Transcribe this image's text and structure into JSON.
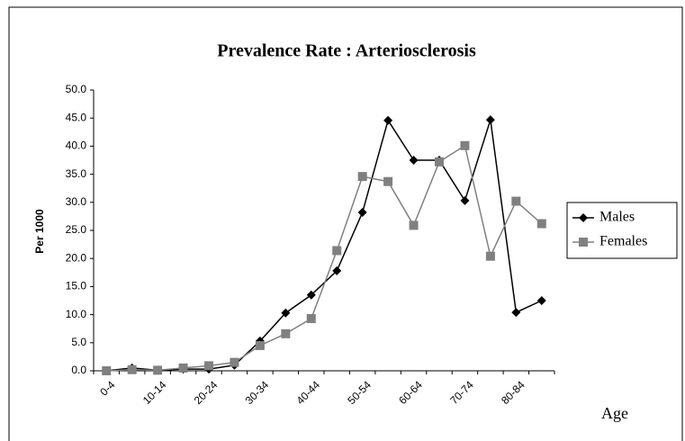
{
  "chart_data": {
    "type": "line",
    "title": "Prevalence Rate : Arteriosclerosis",
    "y_label": "Per 1000",
    "x_label": "Age",
    "categories": [
      "0-4",
      null,
      "10-14",
      null,
      "20-24",
      null,
      "30-34",
      null,
      "40-44",
      null,
      "50-54",
      null,
      "60-64",
      null,
      "70-74",
      null,
      "80-84",
      null
    ],
    "series": [
      {
        "name": "Males",
        "color": "#000000",
        "marker": "diamond",
        "values": [
          0,
          0.5,
          0.1,
          0.3,
          0.3,
          1.0,
          5.3,
          10.3,
          13.5,
          17.8,
          28.2,
          44.6,
          37.5,
          37.5,
          30.3,
          44.7,
          10.4,
          12.5
        ]
      },
      {
        "name": "Females",
        "color": "#808080",
        "marker": "square",
        "values": [
          0,
          0.2,
          0.1,
          0.5,
          0.9,
          1.5,
          4.5,
          6.6,
          9.3,
          21.4,
          34.6,
          33.7,
          25.9,
          37.2,
          40.1,
          20.4,
          30.2,
          26.2
        ]
      }
    ],
    "ylim": [
      0,
      50
    ],
    "yticks": [
      {
        "value": 0,
        "label": "0.0"
      },
      {
        "value": 5,
        "label": "5.0"
      },
      {
        "value": 10,
        "label": "10.0"
      },
      {
        "value": 15,
        "label": "15.0"
      },
      {
        "value": 20,
        "label": "20.0"
      },
      {
        "value": 25,
        "label": "25.0"
      },
      {
        "value": 30,
        "label": "30.0"
      },
      {
        "value": 35,
        "label": "35.0"
      },
      {
        "value": 40,
        "label": "40.0"
      },
      {
        "value": 45,
        "label": "45.0"
      },
      {
        "value": 50,
        "label": "50.0"
      }
    ],
    "legend": "right"
  }
}
